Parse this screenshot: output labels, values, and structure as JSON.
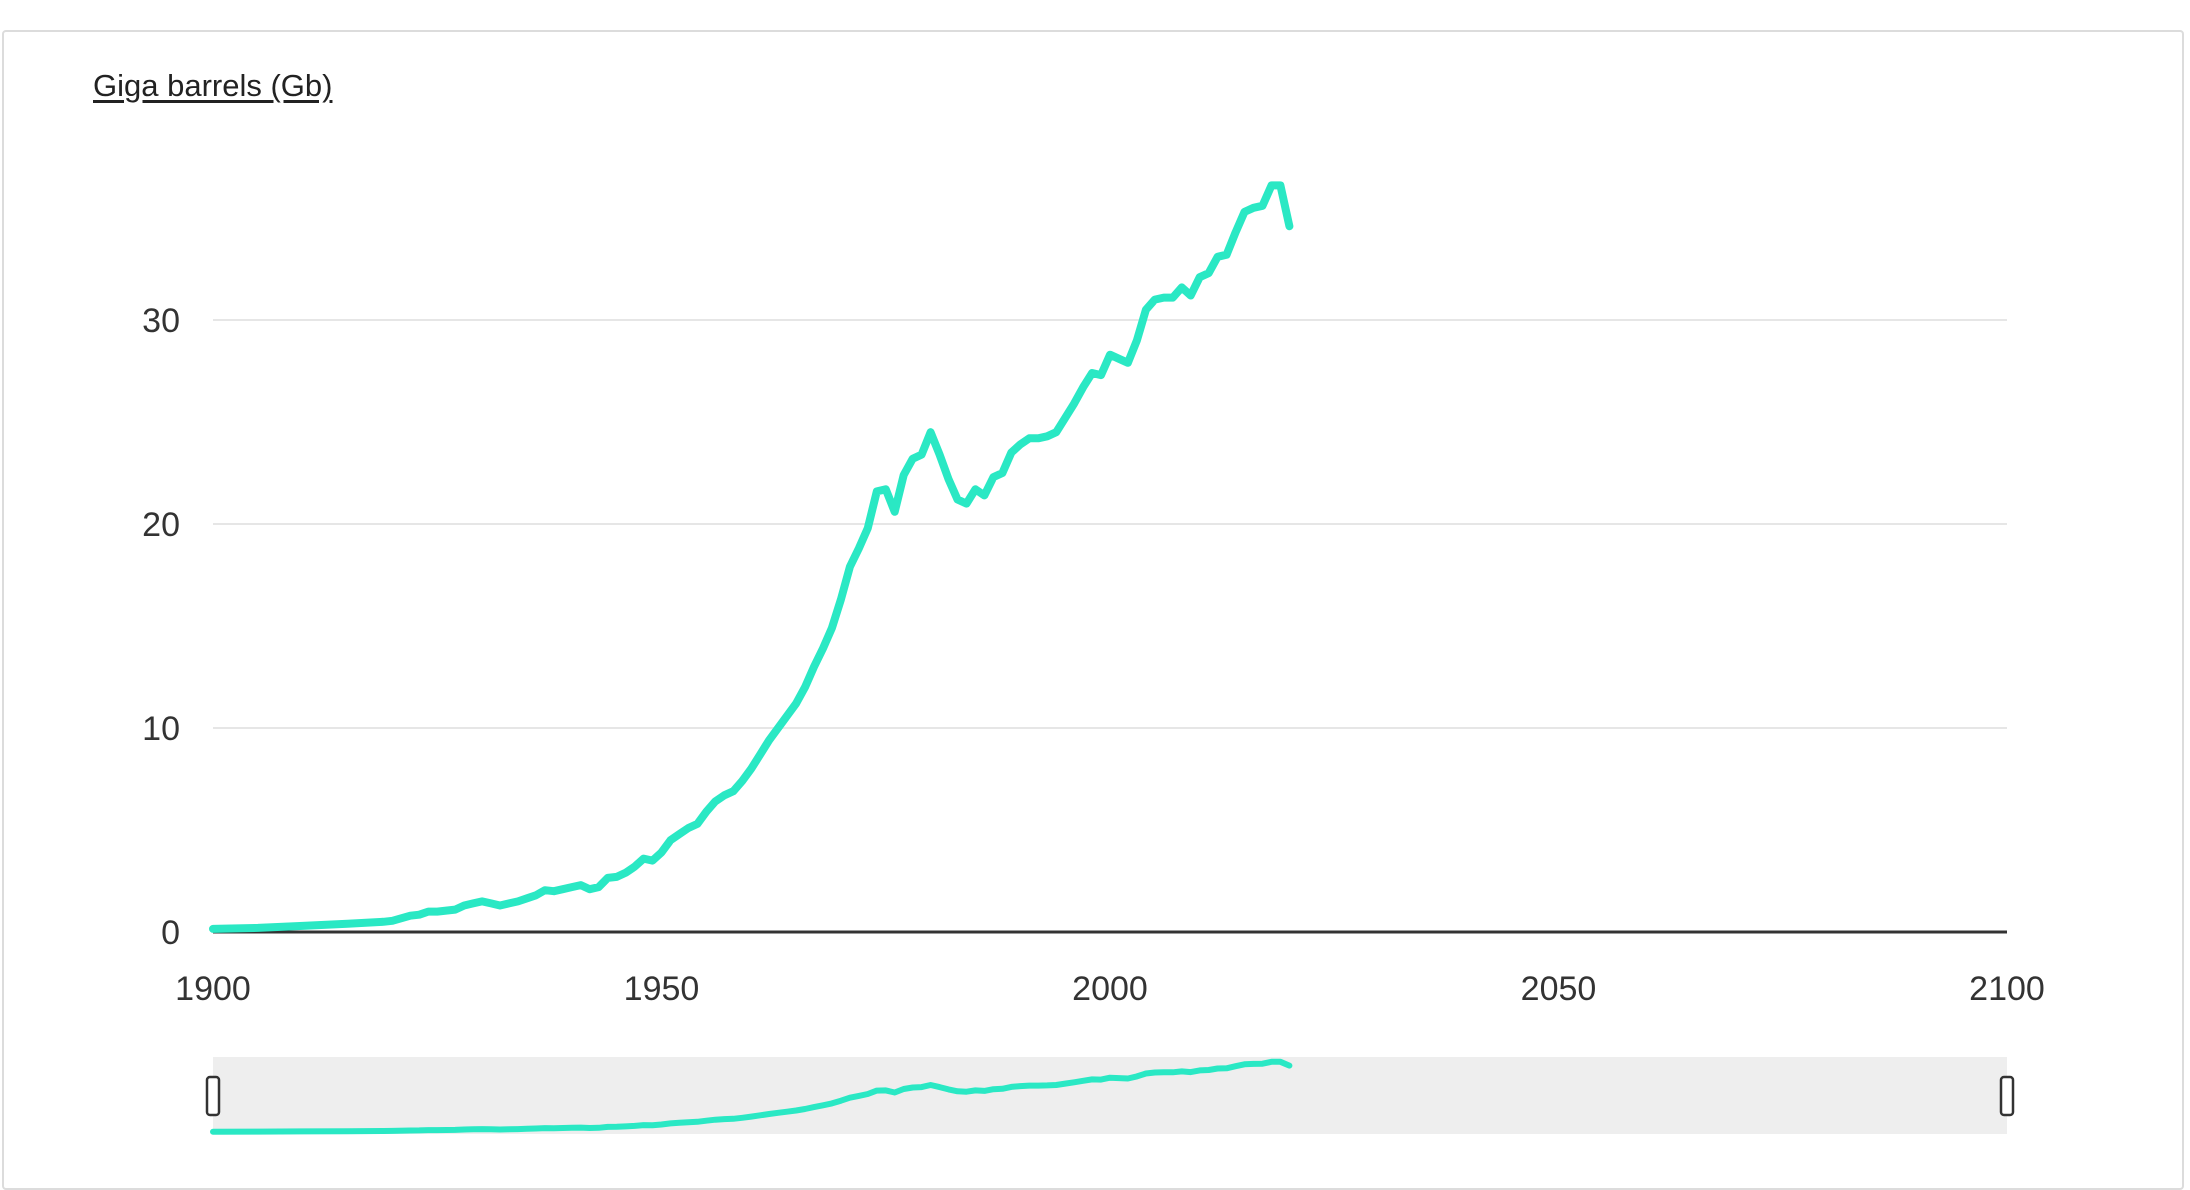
{
  "chart_data": {
    "type": "line",
    "ylabel": "Giga barrels (Gb)",
    "xlim": [
      1900,
      2100
    ],
    "ylim": [
      0,
      37
    ],
    "x_ticks": [
      1900,
      1950,
      2000,
      2050,
      2100
    ],
    "y_ticks": [
      0,
      10,
      20,
      30
    ],
    "grid": true,
    "series": [
      {
        "color": "#2ae8c4",
        "x": [
          1900,
          1905,
          1910,
          1915,
          1919,
          1920,
          1922,
          1923,
          1924,
          1925,
          1926,
          1927,
          1928,
          1929,
          1930,
          1931,
          1932,
          1933,
          1934,
          1935,
          1936,
          1937,
          1938,
          1939,
          1940,
          1941,
          1942,
          1943,
          1944,
          1945,
          1946,
          1947,
          1948,
          1949,
          1950,
          1951,
          1952,
          1953,
          1954,
          1955,
          1956,
          1957,
          1958,
          1959,
          1960,
          1961,
          1962,
          1963,
          1964,
          1965,
          1966,
          1967,
          1968,
          1969,
          1970,
          1971,
          1972,
          1973,
          1974,
          1975,
          1976,
          1977,
          1978,
          1979,
          1980,
          1981,
          1982,
          1983,
          1984,
          1985,
          1986,
          1987,
          1988,
          1989,
          1990,
          1991,
          1992,
          1993,
          1994,
          1995,
          1996,
          1997,
          1998,
          1999,
          2000,
          2001,
          2002,
          2003,
          2004,
          2005,
          2006,
          2007,
          2008,
          2009,
          2010,
          2011,
          2012,
          2013,
          2014,
          2015,
          2016,
          2017,
          2018,
          2019,
          2020
        ],
        "y": [
          0.15,
          0.2,
          0.3,
          0.4,
          0.5,
          0.55,
          0.8,
          0.85,
          1.0,
          1.0,
          1.05,
          1.1,
          1.3,
          1.4,
          1.5,
          1.4,
          1.3,
          1.4,
          1.5,
          1.65,
          1.8,
          2.05,
          2.0,
          2.1,
          2.2,
          2.3,
          2.1,
          2.2,
          2.65,
          2.7,
          2.9,
          3.2,
          3.6,
          3.5,
          3.9,
          4.5,
          4.8,
          5.1,
          5.3,
          5.9,
          6.4,
          6.7,
          6.9,
          7.4,
          8.0,
          8.7,
          9.4,
          10.0,
          10.6,
          11.2,
          12.0,
          13.0,
          13.9,
          14.9,
          16.3,
          17.9,
          18.8,
          19.8,
          21.6,
          21.7,
          20.6,
          22.4,
          23.2,
          23.4,
          24.5,
          23.4,
          22.2,
          21.2,
          21.0,
          21.7,
          21.4,
          22.3,
          22.5,
          23.5,
          23.9,
          24.2,
          24.2,
          24.3,
          24.5,
          25.2,
          25.9,
          26.7,
          27.4,
          27.3,
          28.3,
          28.1,
          27.9,
          29.0,
          30.5,
          31.0,
          31.1,
          31.1,
          31.6,
          31.2,
          32.1,
          32.3,
          33.1,
          33.2,
          34.3,
          35.3,
          35.5,
          35.6,
          36.6,
          36.6,
          34.6
        ]
      }
    ]
  }
}
